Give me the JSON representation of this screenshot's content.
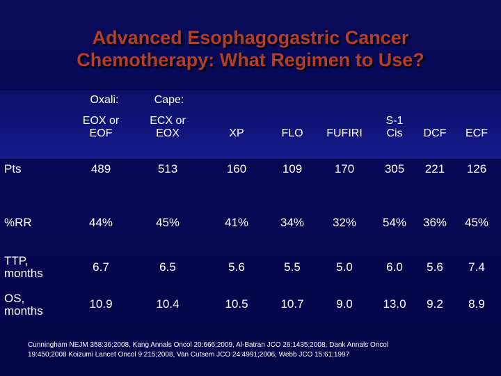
{
  "title": {
    "line1": "Advanced Esophagogastric Cancer",
    "line2": "Chemotherapy:  What Regimen to Use?"
  },
  "group_labels": {
    "oxali": "Oxali:",
    "cape": "Cape:"
  },
  "columns": [
    {
      "line1": "EOX or",
      "line2": "EOF"
    },
    {
      "line1": "ECX or",
      "line2": "EOX"
    },
    {
      "line1": "",
      "line2": "XP"
    },
    {
      "line1": "",
      "line2": "FLO"
    },
    {
      "line1": "",
      "line2": "FUFIRI"
    },
    {
      "line1": "S-1",
      "line2": "Cis"
    },
    {
      "line1": "",
      "line2": "DCF"
    },
    {
      "line1": "",
      "line2": "ECF"
    }
  ],
  "rows": [
    {
      "label1": "Pts",
      "label2": "",
      "values": [
        "489",
        "513",
        "160",
        "109",
        "170",
        "305",
        "221",
        "126"
      ]
    },
    {
      "label1": "%RR",
      "label2": "",
      "values": [
        "44%",
        "45%",
        "41%",
        "34%",
        "32%",
        "54%",
        "36%",
        "45%"
      ]
    },
    {
      "label1": "TTP,",
      "label2": "months",
      "values": [
        "6.7",
        "6.5",
        "5.6",
        "5.5",
        "5.0",
        "6.0",
        "5.6",
        "7.4"
      ]
    },
    {
      "label1": "OS,",
      "label2": "months",
      "values": [
        "10.9",
        "10.4",
        "10.5",
        "10.7",
        "9.0",
        "13.0",
        "9.2",
        "8.9"
      ]
    }
  ],
  "footer": {
    "line1": "Cunningham NEJM 358:36;2008, Kang Annals Oncol 20:666;2009, Al-Batran JCO 26:1435;2008, Dank Annals Oncol",
    "line2": "19:450;2008 Koizumi Lancet Oncol 9:215;2008, Van Cutsem  JCO 24:4991;2006, Webb JCO 15:61;1997"
  }
}
